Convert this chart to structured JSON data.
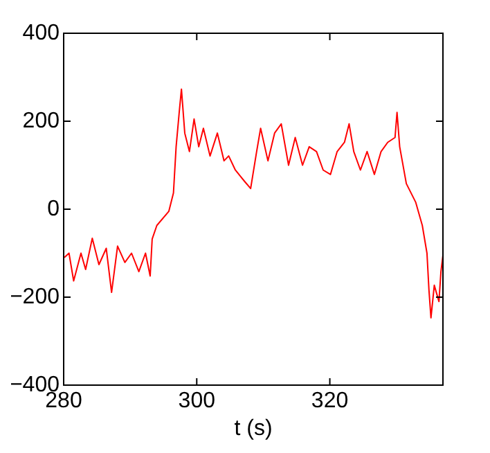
{
  "chart_data": {
    "type": "line",
    "xlabel": "t (s)",
    "xlim": [
      280,
      337
    ],
    "xticks": [
      280,
      300,
      320
    ],
    "ylim": [
      -400,
      400
    ],
    "yticks": [
      -400,
      -200,
      0,
      200,
      400
    ],
    "grid": false,
    "legend": false,
    "marker": "none",
    "line_style": "solid",
    "series": [
      {
        "color": "#ff0000",
        "x": [
          280.1,
          280.8,
          281.5,
          282.6,
          283.3,
          284.3,
          285.3,
          286.4,
          287.2,
          288.1,
          289.2,
          290.2,
          291.3,
          292.3,
          293.0,
          293.3,
          294.0,
          295.8,
          296.5,
          296.9,
          297.4,
          297.7,
          298.2,
          298.9,
          299.6,
          300.3,
          301.0,
          302.0,
          303.1,
          304.1,
          304.8,
          305.8,
          307.2,
          308.1,
          309.0,
          309.6,
          310.7,
          311.7,
          312.7,
          313.8,
          314.8,
          315.9,
          316.9,
          318.0,
          319.0,
          320.1,
          321.1,
          322.2,
          322.9,
          323.6,
          324.6,
          325.6,
          326.7,
          327.7,
          328.7,
          329.8,
          330.1,
          330.5,
          331.5,
          332.9,
          333.9,
          334.6,
          334.9,
          335.2,
          335.7,
          336.4,
          336.7,
          337.0
        ],
        "values": [
          -110,
          -100,
          -163,
          -100,
          -137,
          -66,
          -126,
          -89,
          -189,
          -84,
          -121,
          -100,
          -142,
          -100,
          -152,
          -68,
          -37,
          -5,
          37,
          142,
          226,
          273,
          173,
          131,
          205,
          142,
          184,
          121,
          173,
          110,
          121,
          89,
          63,
          47,
          131,
          184,
          110,
          173,
          194,
          100,
          163,
          100,
          142,
          131,
          89,
          79,
          131,
          152,
          194,
          131,
          89,
          131,
          79,
          131,
          152,
          163,
          220,
          142,
          58,
          16,
          -37,
          -100,
          -184,
          -247,
          -173,
          -210,
          -142,
          -105
        ]
      }
    ]
  }
}
